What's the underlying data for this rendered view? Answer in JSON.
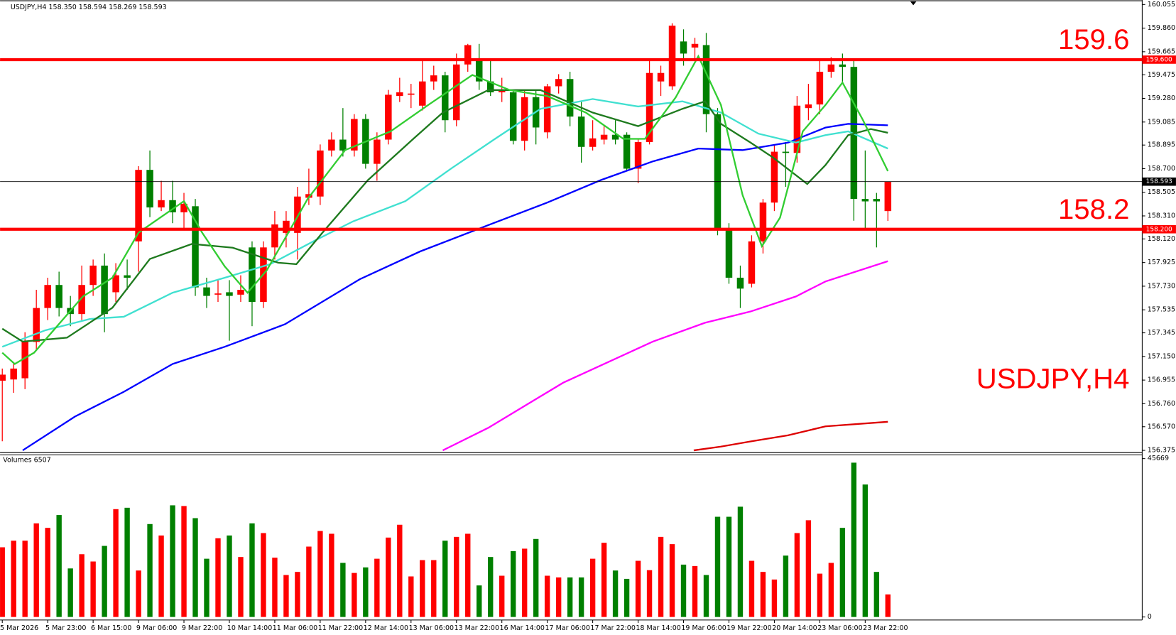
{
  "chart_data": [
    {
      "type": "candlestick",
      "title": "USDJPY,H4  158.350 158.594 158.269 158.593",
      "annotation": "USDJPY,H4",
      "colors": {
        "up": "#ff0000",
        "down": "#008000"
      },
      "categories": [
        "5 Mar 2026",
        null,
        null,
        null,
        "5 Mar 23:00",
        null,
        null,
        null,
        "6 Mar 15:00",
        null,
        null,
        null,
        "9 Mar 06:00",
        null,
        null,
        null,
        "9 Mar 22:00",
        null,
        null,
        null,
        "10 Mar 14:00",
        null,
        null,
        null,
        "11 Mar 06:00",
        null,
        null,
        null,
        "11 Mar 22:00",
        null,
        null,
        null,
        "12 Mar 14:00",
        null,
        null,
        null,
        "13 Mar 06:00",
        null,
        null,
        null,
        "13 Mar 22:00",
        null,
        null,
        null,
        "16 Mar 14:00",
        null,
        null,
        null,
        "17 Mar 06:00",
        null,
        null,
        null,
        "17 Mar 22:00",
        null,
        null,
        null,
        "18 Mar 14:00",
        null,
        null,
        null,
        "19 Mar 06:00",
        null,
        null,
        null,
        "19 Mar 22:00",
        null,
        null,
        null,
        "20 Mar 14:00",
        null,
        null,
        null,
        "23 Mar 06:00",
        null,
        null,
        null,
        "23 Mar 22:00",
        null,
        null
      ],
      "open": [
        156.95,
        156.96,
        156.97,
        157.27,
        157.55,
        157.74,
        157.55,
        157.5,
        157.74,
        157.9,
        157.68,
        157.82,
        158.1,
        158.69,
        158.38,
        158.44,
        158.34,
        158.39,
        157.72,
        157.66,
        157.68,
        157.66,
        158.05,
        157.6,
        158.05,
        158.17,
        158.17,
        158.46,
        158.47,
        158.85,
        158.94,
        158.85,
        159.11,
        158.74,
        158.94,
        159.3,
        159.31,
        159.22,
        159.42,
        159.47,
        159.1,
        159.56,
        159.6,
        159.42,
        159.33,
        159.33,
        158.93,
        159.29,
        159.0,
        159.38,
        159.44,
        159.13,
        158.88,
        158.94,
        158.98,
        158.98,
        158.7,
        158.92,
        159.42,
        159.38,
        159.75,
        159.7,
        159.72,
        159.15,
        158.21,
        157.8,
        157.75,
        158.1,
        158.42,
        158.84,
        158.83,
        159.2,
        159.23,
        159.5,
        159.56,
        159.54,
        158.45,
        158.45,
        158.35
      ],
      "high": [
        157.05,
        157.1,
        157.35,
        157.7,
        157.8,
        157.85,
        157.65,
        157.9,
        157.95,
        158.0,
        157.92,
        157.95,
        158.72,
        158.85,
        158.6,
        158.6,
        158.5,
        158.45,
        157.8,
        157.78,
        157.78,
        157.82,
        158.1,
        158.1,
        158.35,
        158.35,
        158.55,
        158.7,
        158.9,
        159.0,
        159.2,
        159.15,
        159.15,
        159.0,
        159.35,
        159.45,
        159.4,
        159.6,
        159.55,
        159.5,
        159.65,
        159.73,
        159.73,
        159.6,
        159.45,
        159.35,
        159.35,
        159.35,
        159.4,
        159.48,
        159.5,
        159.25,
        159.1,
        159.05,
        159.1,
        159.0,
        158.95,
        159.6,
        159.55,
        159.9,
        159.85,
        159.78,
        159.82,
        159.2,
        158.25,
        157.9,
        158.15,
        158.45,
        158.9,
        158.92,
        159.3,
        159.4,
        159.6,
        159.62,
        159.65,
        159.6,
        158.85,
        158.5,
        158.594
      ],
      "low": [
        156.45,
        156.85,
        156.88,
        157.2,
        157.45,
        157.48,
        157.4,
        157.45,
        157.65,
        157.35,
        157.6,
        157.7,
        157.85,
        158.3,
        158.35,
        158.25,
        158.2,
        157.65,
        157.55,
        157.6,
        157.28,
        157.6,
        157.4,
        157.55,
        157.95,
        158.05,
        157.95,
        158.4,
        158.4,
        158.8,
        158.8,
        158.8,
        158.7,
        158.6,
        158.9,
        159.25,
        159.2,
        159.18,
        159.35,
        159.0,
        159.05,
        159.5,
        159.35,
        159.3,
        159.25,
        158.9,
        158.85,
        158.9,
        158.95,
        159.32,
        159.05,
        158.75,
        158.85,
        158.9,
        158.9,
        158.68,
        158.58,
        158.9,
        159.3,
        159.35,
        159.55,
        159.6,
        159.0,
        158.15,
        157.75,
        157.55,
        157.72,
        158.0,
        158.35,
        158.55,
        158.75,
        159.1,
        159.15,
        159.45,
        159.4,
        158.27,
        158.2,
        158.05,
        158.269
      ],
      "close": [
        157.0,
        157.05,
        157.27,
        157.55,
        157.74,
        157.55,
        157.5,
        157.74,
        157.9,
        157.5,
        157.82,
        157.8,
        158.69,
        158.38,
        158.44,
        158.34,
        158.41,
        157.72,
        157.65,
        157.67,
        157.65,
        157.7,
        157.6,
        158.05,
        158.24,
        158.27,
        158.47,
        158.49,
        158.85,
        158.94,
        158.85,
        159.11,
        158.74,
        158.94,
        159.31,
        159.33,
        159.32,
        159.42,
        159.47,
        159.1,
        159.56,
        159.72,
        159.42,
        159.33,
        159.35,
        158.93,
        159.29,
        159.04,
        159.38,
        159.44,
        159.13,
        158.88,
        158.95,
        158.98,
        158.94,
        158.7,
        158.92,
        159.49,
        159.49,
        159.88,
        159.65,
        159.73,
        159.15,
        158.21,
        157.8,
        157.71,
        158.1,
        158.42,
        158.84,
        158.83,
        159.22,
        159.23,
        159.5,
        159.56,
        159.54,
        158.45,
        158.43,
        158.43,
        158.593
      ],
      "ma": [
        {
          "color": "#0000ff",
          "x": [
            1.8,
            6.4,
            10.7,
            15.0,
            19.6,
            24.9,
            31.5,
            36.8,
            42.8,
            48.0,
            52.7,
            57.3,
            61.3,
            65.2,
            69.2,
            72.5,
            74.5,
            78
          ],
          "values": [
            156.375,
            156.654,
            156.858,
            157.088,
            157.23,
            157.416,
            157.788,
            158.017,
            158.234,
            158.42,
            158.605,
            158.76,
            158.866,
            158.853,
            158.915,
            159.039,
            159.07,
            159.058
          ]
        },
        {
          "color": "#40e0d0",
          "x": [
            0,
            3.8,
            7.7,
            10.7,
            15.0,
            19.6,
            23.6,
            27.6,
            30.9,
            35.5,
            39.5,
            43.4,
            47.4,
            52.0,
            56.0,
            59.9,
            63.3,
            66.6,
            69.9,
            72.5,
            74.5,
            78
          ],
          "values": [
            157.23,
            157.366,
            157.459,
            157.478,
            157.676,
            157.8,
            157.912,
            158.11,
            158.265,
            158.432,
            158.699,
            158.946,
            159.194,
            159.275,
            159.213,
            159.256,
            159.163,
            158.989,
            158.915,
            158.977,
            159.008,
            158.866
          ]
        },
        {
          "color": "#1e7a1e",
          "x": [
            0,
            1.8,
            5.7,
            9.7,
            13.0,
            16.7,
            20.3,
            24.3,
            25.9,
            28.2,
            32.2,
            36.2,
            38.8,
            42.8,
            47.4,
            52.0,
            56.0,
            59.9,
            61.9,
            63.3,
            65.9,
            67.9,
            70.9,
            72.5,
            74.5,
            76.5,
            78
          ],
          "values": [
            157.379,
            157.273,
            157.305,
            157.552,
            157.955,
            158.079,
            158.048,
            157.924,
            157.912,
            158.172,
            158.605,
            158.946,
            159.163,
            159.349,
            159.349,
            159.163,
            159.051,
            159.194,
            159.256,
            159.07,
            158.915,
            158.791,
            158.574,
            158.729,
            158.977,
            159.027,
            158.996
          ]
        },
        {
          "color": "#32cd32",
          "x": [
            0,
            1.1,
            2.8,
            7.1,
            9.7,
            12.0,
            16.0,
            17.6,
            19.6,
            21.6,
            23.3,
            26.9,
            30.2,
            34.2,
            37.5,
            41.4,
            44.7,
            48.0,
            51.4,
            54.7,
            56.6,
            59.3,
            61.3,
            63.3,
            65.2,
            66.9,
            68.5,
            70.5,
            72.5,
            74.0,
            75.8,
            78
          ],
          "values": [
            157.181,
            157.088,
            157.181,
            157.645,
            157.8,
            158.172,
            158.432,
            158.172,
            157.893,
            157.676,
            157.862,
            158.451,
            158.853,
            159.008,
            159.225,
            159.473,
            159.349,
            159.299,
            159.163,
            158.946,
            158.946,
            159.287,
            159.628,
            159.225,
            158.482,
            158.06,
            158.296,
            159.008,
            159.225,
            159.411,
            159.101,
            158.68
          ]
        },
        {
          "color": "#ff00ff",
          "x": [
            38.8,
            42.8,
            49.4,
            57.3,
            61.9,
            65.9,
            69.9,
            72.5,
            78
          ],
          "values": [
            156.375,
            156.561,
            156.933,
            157.273,
            157.428,
            157.521,
            157.645,
            157.769,
            157.936
          ]
        },
        {
          "color": "#dd0000",
          "x": [
            60.9,
            63.3,
            65.9,
            69.2,
            72.5,
            78
          ],
          "values": [
            156.375,
            156.406,
            156.449,
            156.499,
            156.573,
            156.611
          ]
        }
      ],
      "levels": [
        {
          "value": 159.6,
          "label": "159.600",
          "color": "#ff0000"
        },
        {
          "value": 158.2,
          "label": "158.200",
          "color": "#ff0000"
        }
      ],
      "price_line": 158.593,
      "ylim": [
        156.375,
        160.055
      ],
      "yticks": [
        160.055,
        {
          "value": 159.86,
          "label": "159.860"
        },
        159.665,
        159.475,
        {
          "value": 159.28,
          "label": "159.280"
        },
        159.085,
        158.895,
        {
          "value": 158.7,
          "label": "158.700"
        },
        158.505,
        {
          "value": 158.31,
          "label": "158.310"
        },
        {
          "value": 158.12,
          "label": "158.120"
        },
        157.925,
        {
          "value": 157.73,
          "label": "157.730"
        },
        157.535,
        157.345,
        {
          "value": 157.15,
          "label": "157.150"
        },
        156.955,
        {
          "value": 156.76,
          "label": "156.760"
        },
        {
          "value": 156.57,
          "label": "156.570"
        },
        156.375
      ]
    },
    {
      "type": "bar",
      "title": "Volumes 6507",
      "values": [
        20100,
        22000,
        22000,
        27000,
        25700,
        29400,
        14000,
        18100,
        16000,
        20500,
        31100,
        31500,
        13400,
        26800,
        23500,
        32200,
        32000,
        28500,
        16800,
        22700,
        23500,
        17300,
        27000,
        24200,
        17100,
        12100,
        13000,
        20300,
        24800,
        24000,
        15600,
        12700,
        14300,
        16800,
        22900,
        26600,
        11700,
        16400,
        16400,
        22000,
        23100,
        24000,
        9100,
        17300,
        11900,
        19000,
        19700,
        22500,
        11900,
        11400,
        11400,
        11400,
        16800,
        21400,
        13400,
        11000,
        16200,
        13500,
        23100,
        21000,
        15100,
        14700,
        12100,
        28900,
        28900,
        31800,
        16200,
        13000,
        10800,
        17700,
        24200,
        27900,
        12500,
        15600,
        25700,
        44500,
        38200,
        13000,
        6507
      ],
      "ylim": [
        0,
        45669
      ],
      "yticks": [
        0,
        45669
      ]
    }
  ]
}
